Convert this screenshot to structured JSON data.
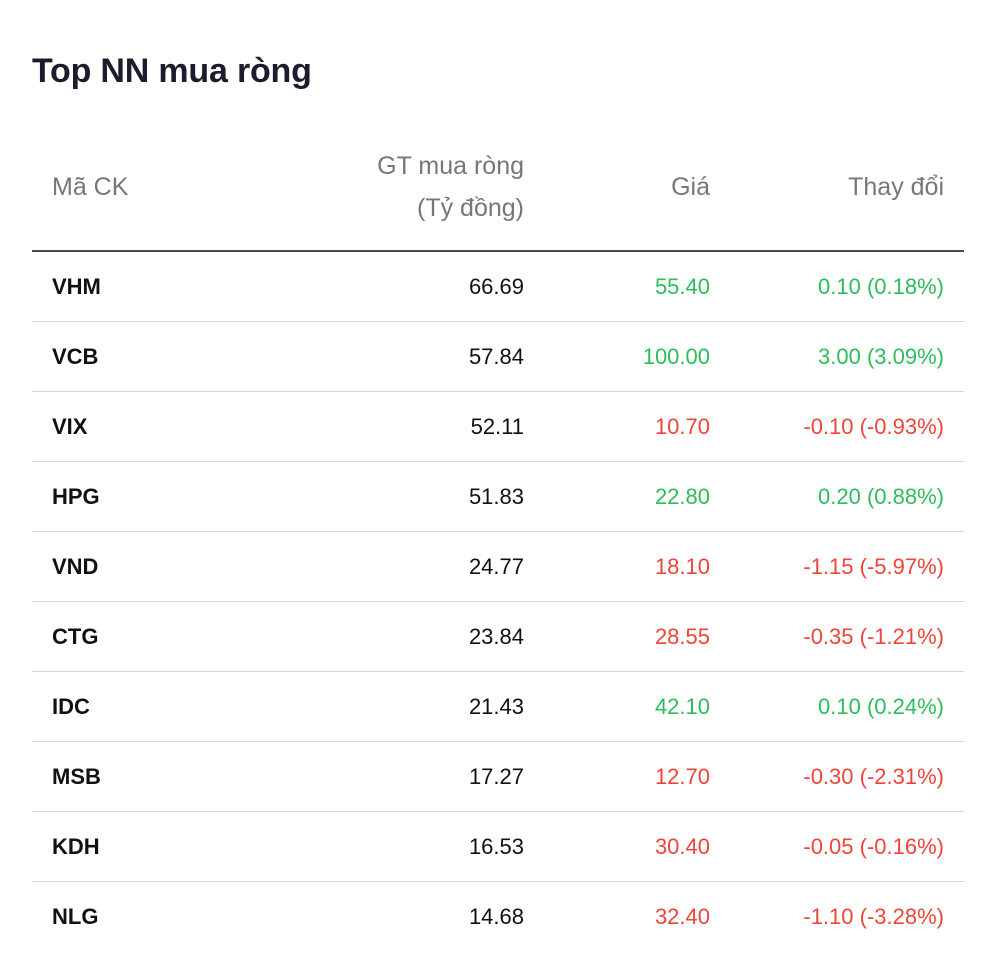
{
  "title": "Top NN mua ròng",
  "columns": {
    "code": "Mã CK",
    "value_line1": "GT mua ròng",
    "value_line2": "(Tỷ đồng)",
    "price": "Giá",
    "change": "Thay đổi"
  },
  "colors": {
    "up": "#2dbd5a",
    "down": "#f04438"
  },
  "rows": [
    {
      "code": "VHM",
      "value": "66.69",
      "price": "55.40",
      "change": "0.10 (0.18%)",
      "direction": "up"
    },
    {
      "code": "VCB",
      "value": "57.84",
      "price": "100.00",
      "change": "3.00 (3.09%)",
      "direction": "up"
    },
    {
      "code": "VIX",
      "value": "52.11",
      "price": "10.70",
      "change": "-0.10 (-0.93%)",
      "direction": "down"
    },
    {
      "code": "HPG",
      "value": "51.83",
      "price": "22.80",
      "change": "0.20 (0.88%)",
      "direction": "up"
    },
    {
      "code": "VND",
      "value": "24.77",
      "price": "18.10",
      "change": "-1.15 (-5.97%)",
      "direction": "down"
    },
    {
      "code": "CTG",
      "value": "23.84",
      "price": "28.55",
      "change": "-0.35 (-1.21%)",
      "direction": "down"
    },
    {
      "code": "IDC",
      "value": "21.43",
      "price": "42.10",
      "change": "0.10 (0.24%)",
      "direction": "up"
    },
    {
      "code": "MSB",
      "value": "17.27",
      "price": "12.70",
      "change": "-0.30 (-2.31%)",
      "direction": "down"
    },
    {
      "code": "KDH",
      "value": "16.53",
      "price": "30.40",
      "change": "-0.05 (-0.16%)",
      "direction": "down"
    },
    {
      "code": "NLG",
      "value": "14.68",
      "price": "32.40",
      "change": "-1.10 (-3.28%)",
      "direction": "down"
    }
  ]
}
